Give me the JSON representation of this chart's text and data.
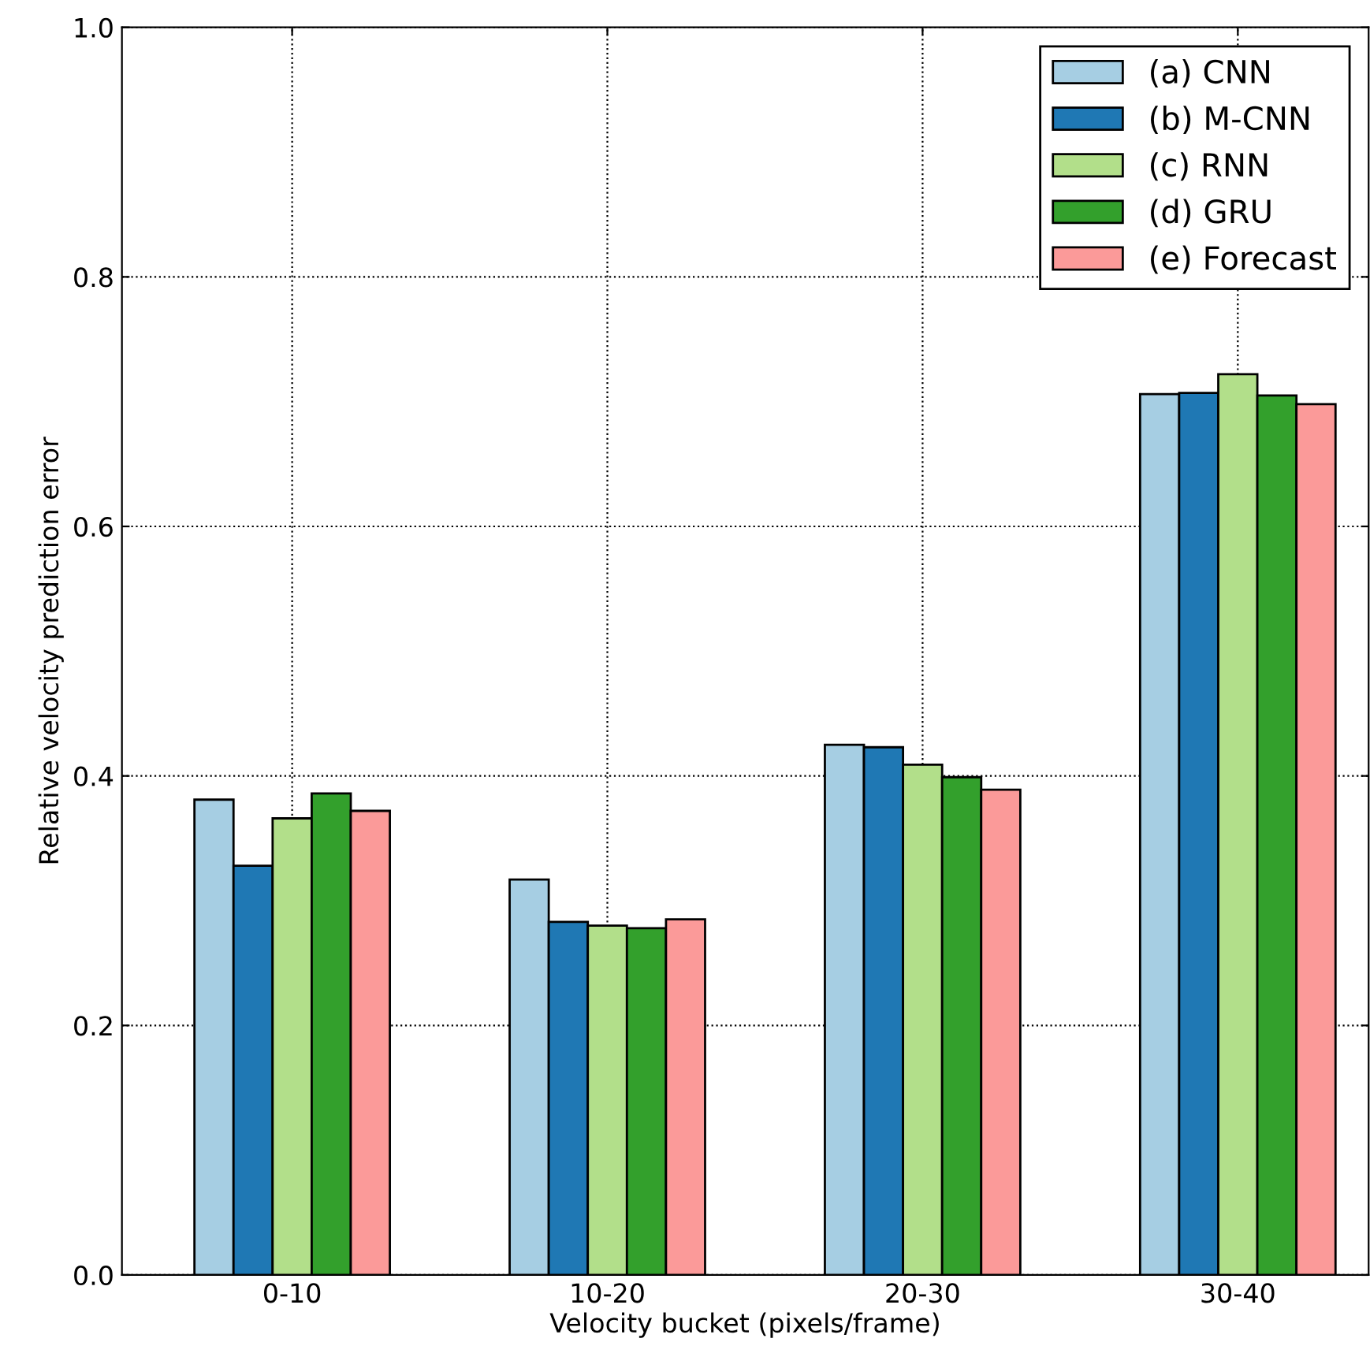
{
  "chart_data": {
    "type": "bar",
    "xlabel": "Velocity bucket (pixels/frame)",
    "ylabel": "Relative velocity prediction error",
    "categories": [
      "0-10",
      "10-20",
      "20-30",
      "30-40"
    ],
    "series": [
      {
        "name": "(a) CNN",
        "color": "#a6cee3",
        "values": [
          0.381,
          0.317,
          0.425,
          0.706
        ]
      },
      {
        "name": "(b) M-CNN",
        "color": "#1f78b4",
        "values": [
          0.328,
          0.283,
          0.423,
          0.707
        ]
      },
      {
        "name": "(c) RNN",
        "color": "#b2df8a",
        "values": [
          0.366,
          0.28,
          0.409,
          0.722
        ]
      },
      {
        "name": "(d) GRU",
        "color": "#33a02c",
        "values": [
          0.386,
          0.278,
          0.399,
          0.705
        ]
      },
      {
        "name": "(e) Forecast",
        "color": "#fb9a99",
        "values": [
          0.372,
          0.285,
          0.389,
          0.698
        ]
      }
    ],
    "ylim": [
      0.0,
      1.0
    ],
    "yticks": [
      {
        "value": 0,
        "label": "0.0"
      },
      0.2,
      0.4,
      0.6,
      0.8,
      {
        "value": 1,
        "label": "1.0"
      }
    ],
    "grid": true,
    "legend": "top right"
  }
}
